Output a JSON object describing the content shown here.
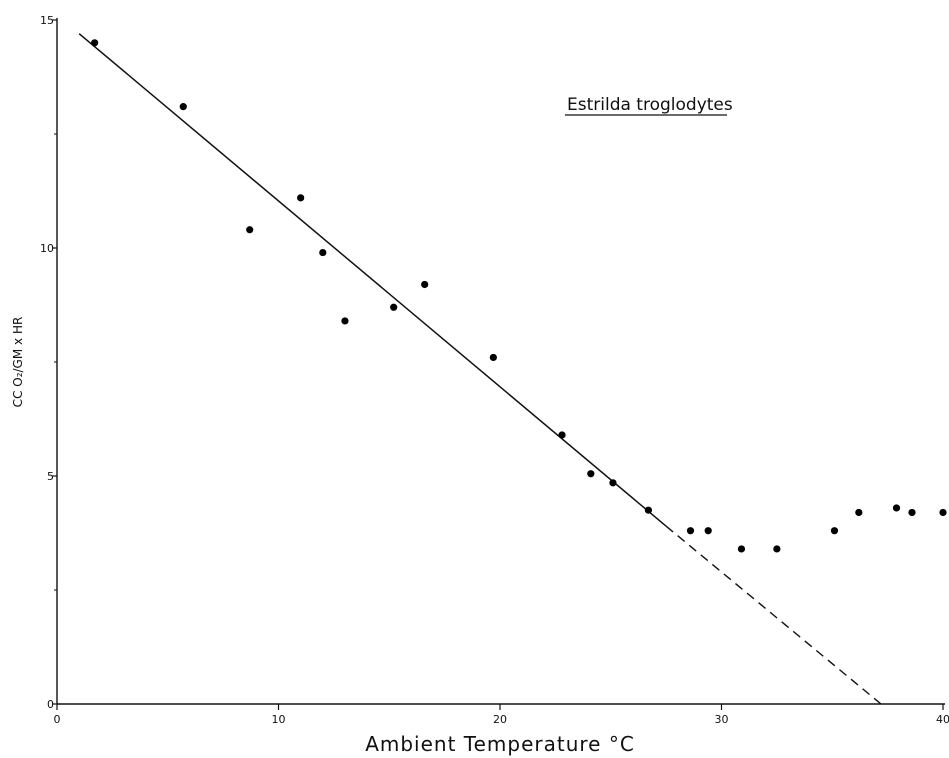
{
  "chart_data": {
    "type": "scatter",
    "title": "Estrilda troglodytes",
    "xlabel": "Ambient Temperature °C",
    "ylabel": "CC O₂/GM x HR",
    "xlim": [
      0,
      40
    ],
    "ylim": [
      0,
      15
    ],
    "x_ticks": [
      0,
      10,
      20,
      30,
      40
    ],
    "y_ticks": [
      0,
      5,
      10,
      15
    ],
    "grid": false,
    "series": [
      {
        "points": [
          [
            1.7,
            14.5
          ],
          [
            5.7,
            13.1
          ],
          [
            8.7,
            10.4
          ],
          [
            11.0,
            11.1
          ],
          [
            12.0,
            9.9
          ],
          [
            13.0,
            8.4
          ],
          [
            15.2,
            8.7
          ],
          [
            16.6,
            9.2
          ],
          [
            19.7,
            7.6
          ],
          [
            22.8,
            5.9
          ],
          [
            24.1,
            5.05
          ],
          [
            25.1,
            4.85
          ],
          [
            26.7,
            4.25
          ],
          [
            28.6,
            3.8
          ],
          [
            29.4,
            3.8
          ],
          [
            30.9,
            3.4
          ],
          [
            32.5,
            3.4
          ],
          [
            35.1,
            3.8
          ],
          [
            36.2,
            4.2
          ],
          [
            37.9,
            4.3
          ],
          [
            38.6,
            4.2
          ],
          [
            40.0,
            4.2
          ]
        ]
      }
    ],
    "fit_line": {
      "solid_from": [
        1.0,
        14.7
      ],
      "solid_to": [
        27.5,
        3.9
      ],
      "dashed_to": [
        37.2,
        0
      ]
    }
  }
}
